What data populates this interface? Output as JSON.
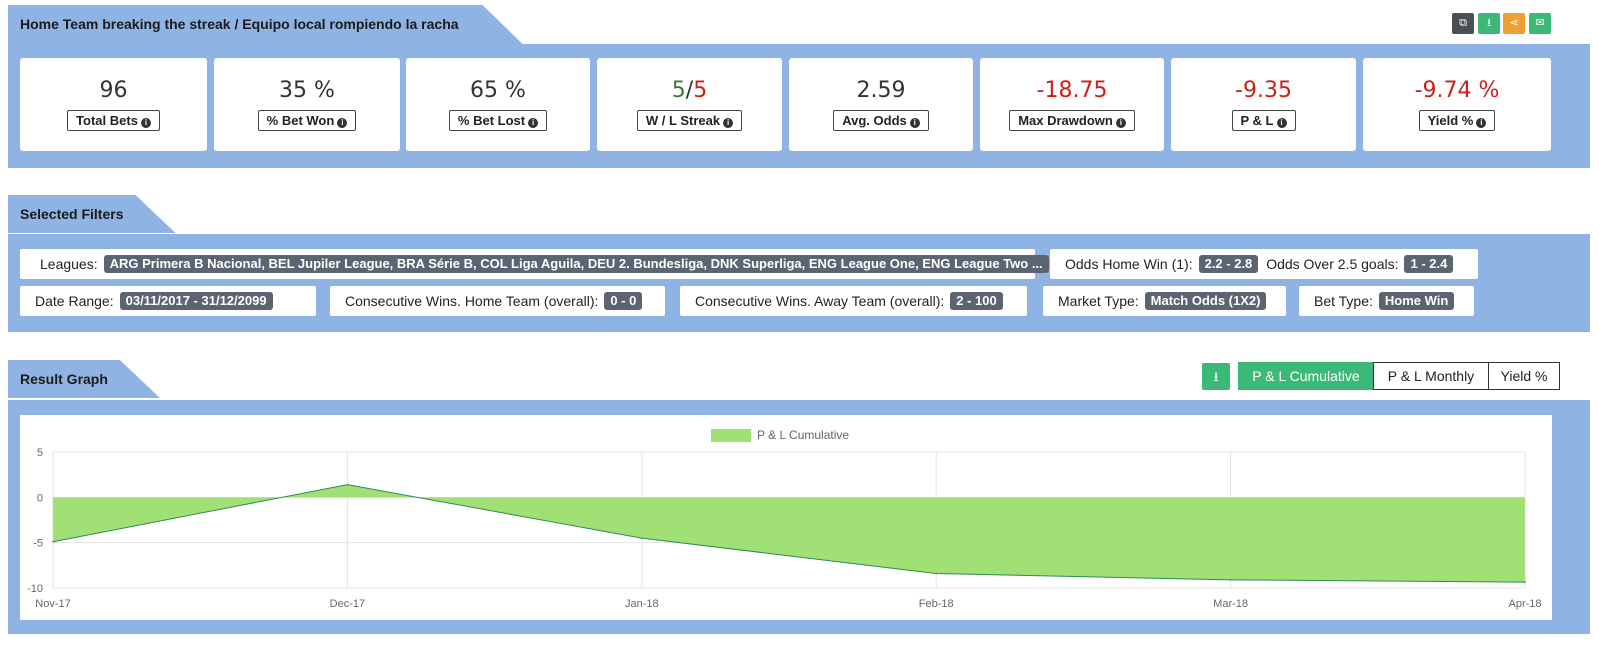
{
  "header": {
    "title": "Home Team breaking the streak / Equipo local rompiendo la racha",
    "actions": [
      "copy-icon",
      "download-icon",
      "share-icon",
      "email-icon"
    ]
  },
  "stats": [
    {
      "value": "96",
      "label": "Total Bets"
    },
    {
      "value": "35 %",
      "label": "% Bet Won"
    },
    {
      "value": "65 %",
      "label": "% Bet Lost"
    },
    {
      "value_win": "5",
      "value_sep": "/",
      "value_loss": "5",
      "label": "W / L Streak"
    },
    {
      "value": "2.59",
      "label": "Avg. Odds"
    },
    {
      "value": "-18.75",
      "label": "Max Drawdown"
    },
    {
      "value": "-9.35",
      "label": "P & L"
    },
    {
      "value": "-9.74 %",
      "label": "Yield %"
    }
  ],
  "filters": {
    "title": "Selected Filters",
    "leagues_label": "Leagues:",
    "leagues_value": "ARG Primera B Nacional, BEL Jupiler League, BRA Série B, COL Liga Aguila, DEU 2. Bundesliga, DNK Superliga, ENG League One, ENG League Two ...",
    "odds_home_label": "Odds Home Win (1):",
    "odds_home_value": "2.2 - 2.8",
    "odds_over_label": "Odds Over 2.5 goals:",
    "odds_over_value": "1 - 2.4",
    "date_label": "Date Range:",
    "date_value": "03/11/2017 - 31/12/2099",
    "cons_home_label": "Consecutive Wins. Home Team (overall):",
    "cons_home_value": "0 - 0",
    "cons_away_label": "Consecutive Wins. Away Team (overall):",
    "cons_away_value": "2 - 100",
    "market_label": "Market Type:",
    "market_value": "Match Odds (1X2)",
    "bettype_label": "Bet Type:",
    "bettype_value": "Home Win"
  },
  "result_graph": {
    "title": "Result Graph",
    "tabs": [
      "P & L Cumulative",
      "P & L Monthly",
      "Yield %"
    ],
    "active_tab": "P & L Cumulative"
  },
  "colors": {
    "panel": "#8fb4e3",
    "accent_green": "#3cb878",
    "area_fill": "#a0e075",
    "line": "#2e8b57",
    "negative": "#cc1f1a"
  },
  "chart_data": {
    "type": "area",
    "x": [
      "Nov-17",
      "Dec-17",
      "Jan-18",
      "Feb-18",
      "Mar-18",
      "Apr-18"
    ],
    "series": [
      {
        "name": "P & L Cumulative",
        "values": [
          -4.9,
          1.4,
          -4.5,
          -8.4,
          -9.1,
          -9.35
        ]
      }
    ],
    "ylim": [
      -10,
      5
    ],
    "yticks": [
      5,
      0,
      -5,
      -10
    ],
    "legend": "top-center",
    "grid": true
  }
}
